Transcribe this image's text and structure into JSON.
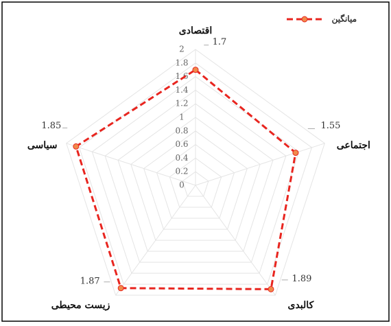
{
  "chart_data": {
    "type": "radar",
    "categories": [
      "اقتصادی",
      "اجتماعی",
      "کالبدی",
      "زیست محیطی",
      "سیاسی"
    ],
    "series": [
      {
        "name": "میانگین",
        "color": "#e8251f",
        "values": [
          1.7,
          1.55,
          1.89,
          1.87,
          1.85
        ]
      }
    ],
    "rlim": [
      0,
      2
    ],
    "rticks": [
      0,
      0.2,
      0.4,
      0.6,
      0.8,
      1,
      1.2,
      1.4,
      1.6,
      1.8,
      2
    ],
    "grid": true,
    "legend": "top-right"
  }
}
